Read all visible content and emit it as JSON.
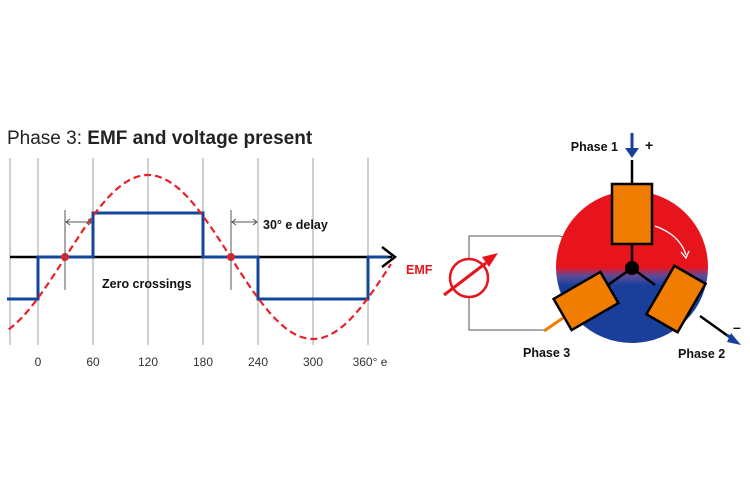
{
  "title": {
    "prefix": "Phase 3: ",
    "emphasis": "EMF and voltage present"
  },
  "waveform": {
    "x_ticks": [
      "0",
      "60",
      "120",
      "180",
      "240",
      "300",
      "360° e"
    ],
    "delay_label": "30° e delay",
    "zero_crossings_label": "Zero crossings",
    "colors": {
      "emf": "#e8202a",
      "voltage": "#10479b",
      "axis": "#000000",
      "grid": "#9a9a9a"
    }
  },
  "motor": {
    "phase1_label": "Phase 1",
    "phase2_label": "Phase 2",
    "phase3_label": "Phase 3",
    "plus_sign": "+",
    "minus_sign": "–",
    "emf_label": "EMF",
    "colors": {
      "coil": "#f07d00",
      "north": "#e8141c",
      "south": "#1a3f9a",
      "meter": "#e8141c"
    }
  }
}
